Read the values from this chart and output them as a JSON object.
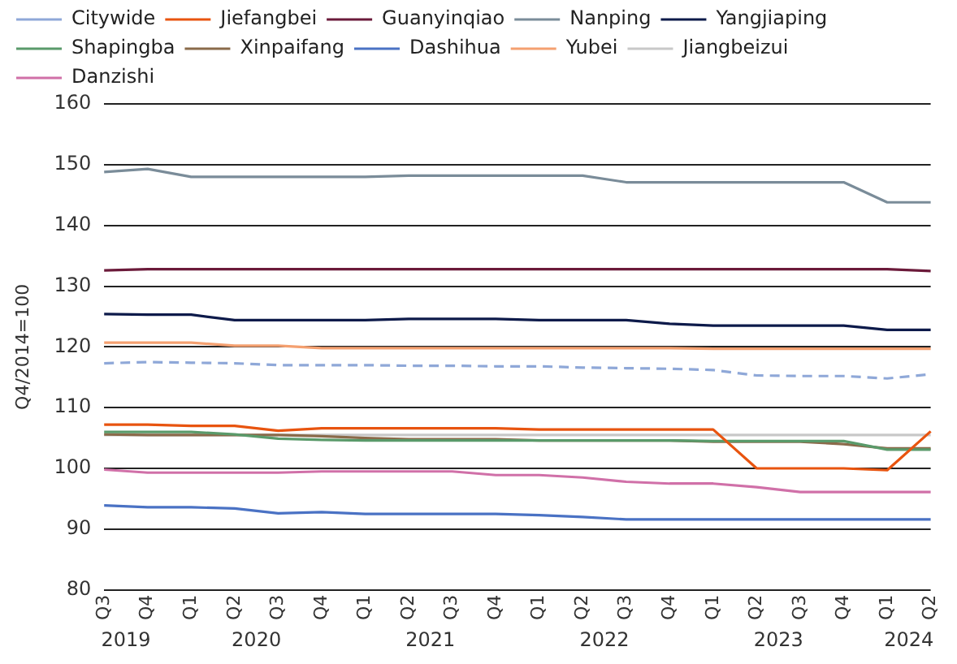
{
  "chart_data": {
    "type": "line",
    "ylabel": "Q4/2014=100",
    "categories": [
      "Q3",
      "Q4",
      "Q1",
      "Q2",
      "Q3",
      "Q4",
      "Q1",
      "Q2",
      "Q3",
      "Q4",
      "Q1",
      "Q2",
      "Q3",
      "Q4",
      "Q1",
      "Q2",
      "Q3",
      "Q4",
      "Q1",
      "Q2"
    ],
    "annotations": [
      "2019",
      "2020",
      "2021",
      "2022",
      "2023",
      "2024"
    ],
    "ylim": [
      80,
      160
    ],
    "yticks": [
      80,
      90,
      100,
      110,
      120,
      130,
      140,
      150,
      160
    ],
    "grid": "y",
    "legend": "top",
    "marker": "none",
    "series": [
      {
        "name": "Citywide",
        "color": "#8fa8d8",
        "line_style": "dashed",
        "values": [
          117.3,
          117.5,
          117.4,
          117.3,
          117.0,
          117.0,
          117.0,
          116.9,
          116.9,
          116.8,
          116.8,
          116.6,
          116.5,
          116.4,
          116.2,
          115.3,
          115.2,
          115.2,
          114.8,
          115.5
        ]
      },
      {
        "name": "Jiefangbei",
        "color": "#e8540f",
        "values": [
          107.2,
          107.2,
          107.0,
          107.0,
          106.2,
          106.6,
          106.6,
          106.6,
          106.6,
          106.6,
          106.4,
          106.4,
          106.4,
          106.4,
          106.4,
          100.0,
          100.0,
          100.0,
          99.7,
          106.1
        ]
      },
      {
        "name": "Guanyinqiao",
        "color": "#6b1a3a",
        "values": [
          132.6,
          132.8,
          132.8,
          132.8,
          132.8,
          132.8,
          132.8,
          132.8,
          132.8,
          132.8,
          132.8,
          132.8,
          132.8,
          132.8,
          132.8,
          132.8,
          132.8,
          132.8,
          132.8,
          132.5
        ]
      },
      {
        "name": "Nanping",
        "color": "#7a8c99",
        "values": [
          148.8,
          149.3,
          148.0,
          148.0,
          148.0,
          148.0,
          148.0,
          148.2,
          148.2,
          148.2,
          148.2,
          148.2,
          147.1,
          147.1,
          147.1,
          147.1,
          147.1,
          147.1,
          143.8,
          143.8
        ]
      },
      {
        "name": "Yangjiaping",
        "color": "#0d1a4a",
        "values": [
          125.4,
          125.3,
          125.3,
          124.4,
          124.4,
          124.4,
          124.4,
          124.6,
          124.6,
          124.6,
          124.4,
          124.4,
          124.4,
          123.8,
          123.5,
          123.5,
          123.5,
          123.5,
          122.8,
          122.8
        ]
      },
      {
        "name": "Shapingba",
        "color": "#5a9a6a",
        "values": [
          106.0,
          106.0,
          106.0,
          105.6,
          104.9,
          104.7,
          104.6,
          104.6,
          104.6,
          104.6,
          104.6,
          104.6,
          104.6,
          104.6,
          104.5,
          104.5,
          104.5,
          104.5,
          103.1,
          103.1
        ]
      },
      {
        "name": "Xinpaifang",
        "color": "#8a6a4a",
        "values": [
          105.6,
          105.5,
          105.5,
          105.5,
          105.5,
          105.3,
          105.0,
          104.8,
          104.8,
          104.8,
          104.6,
          104.6,
          104.6,
          104.6,
          104.4,
          104.4,
          104.4,
          104.0,
          103.3,
          103.3
        ]
      },
      {
        "name": "Dashihua",
        "color": "#4a72c4",
        "values": [
          93.9,
          93.6,
          93.6,
          93.4,
          92.6,
          92.8,
          92.5,
          92.5,
          92.5,
          92.5,
          92.3,
          92.0,
          91.6,
          91.6,
          91.6,
          91.6,
          91.6,
          91.6,
          91.6,
          91.6
        ]
      },
      {
        "name": "Yubei",
        "color": "#f4a070",
        "values": [
          120.7,
          120.7,
          120.7,
          120.2,
          120.2,
          119.8,
          119.8,
          119.8,
          119.8,
          119.8,
          119.8,
          119.8,
          119.8,
          119.8,
          119.7,
          119.7,
          119.7,
          119.7,
          119.7,
          119.7
        ]
      },
      {
        "name": "Jiangbeizui",
        "color": "#c8c8c8",
        "values": [
          105.5,
          105.5,
          105.5,
          105.5,
          105.5,
          105.5,
          105.5,
          105.5,
          105.5,
          105.5,
          105.5,
          105.5,
          105.5,
          105.5,
          105.5,
          105.5,
          105.5,
          105.5,
          105.5,
          105.5
        ]
      },
      {
        "name": "Danzishi",
        "color": "#d070a8",
        "values": [
          99.8,
          99.3,
          99.3,
          99.3,
          99.3,
          99.5,
          99.5,
          99.5,
          99.5,
          98.9,
          98.9,
          98.5,
          97.8,
          97.5,
          97.5,
          96.9,
          96.1,
          96.1,
          96.1,
          96.1
        ]
      }
    ]
  }
}
